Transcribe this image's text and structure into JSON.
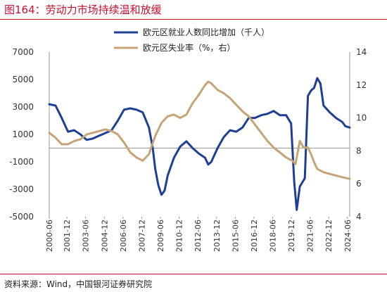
{
  "header": {
    "title": "图164：劳动力市场持续温和放缓"
  },
  "footer": {
    "source": "资料来源：Wind，中国银河证券研究院"
  },
  "colors": {
    "accent": "#c8102e",
    "employment_line": "#1f3f94",
    "unemployment_line": "#c4a478"
  },
  "chart_data": {
    "type": "line",
    "title": "图164：劳动力市场持续温和放缓",
    "x_tick_labels": [
      "2000-06",
      "2001-12",
      "2003-06",
      "2004-12",
      "2006-06",
      "2007-12",
      "2009-06",
      "2010-12",
      "2012-06",
      "2013-12",
      "2015-06",
      "2016-12",
      "2018-06",
      "2019-12",
      "2021-06",
      "2022-12",
      "2024-06"
    ],
    "left_axis": {
      "ylim": [
        -5000,
        7000
      ],
      "ticks": [
        7000,
        5000,
        3000,
        1000,
        -1000,
        -3000,
        -5000
      ]
    },
    "right_axis": {
      "ylim": [
        4,
        14
      ],
      "ticks": [
        14,
        12,
        10,
        8,
        6,
        4
      ]
    },
    "legend_position": "top-center",
    "grid": false,
    "series": [
      {
        "name": "欧元区就业人数同比增加（千人）",
        "axis": "left",
        "color": "#1f3f94",
        "points": [
          [
            2000.5,
            3200
          ],
          [
            2001.0,
            3100
          ],
          [
            2001.5,
            2200
          ],
          [
            2002.0,
            1200
          ],
          [
            2002.5,
            1300
          ],
          [
            2003.0,
            1000
          ],
          [
            2003.5,
            600
          ],
          [
            2004.0,
            700
          ],
          [
            2004.5,
            900
          ],
          [
            2005.0,
            1100
          ],
          [
            2005.5,
            1300
          ],
          [
            2006.0,
            2000
          ],
          [
            2006.5,
            2800
          ],
          [
            2007.0,
            2900
          ],
          [
            2007.5,
            2800
          ],
          [
            2008.0,
            2600
          ],
          [
            2008.5,
            1500
          ],
          [
            2008.8,
            0
          ],
          [
            2009.0,
            -1500
          ],
          [
            2009.25,
            -2700
          ],
          [
            2009.5,
            -3400
          ],
          [
            2009.75,
            -3100
          ],
          [
            2010.0,
            -2000
          ],
          [
            2010.5,
            -700
          ],
          [
            2011.0,
            100
          ],
          [
            2011.5,
            500
          ],
          [
            2012.0,
            0
          ],
          [
            2012.5,
            -400
          ],
          [
            2013.0,
            -700
          ],
          [
            2013.25,
            -1200
          ],
          [
            2013.5,
            -1000
          ],
          [
            2014.0,
            0
          ],
          [
            2014.5,
            800
          ],
          [
            2015.0,
            1300
          ],
          [
            2015.5,
            1200
          ],
          [
            2016.0,
            1500
          ],
          [
            2016.5,
            2200
          ],
          [
            2017.0,
            2200
          ],
          [
            2017.5,
            2400
          ],
          [
            2018.0,
            2500
          ],
          [
            2018.5,
            2700
          ],
          [
            2019.0,
            2400
          ],
          [
            2019.5,
            2400
          ],
          [
            2019.9,
            1800
          ],
          [
            2020.15,
            -2500
          ],
          [
            2020.35,
            -4500
          ],
          [
            2020.6,
            -2800
          ],
          [
            2021.0,
            -2200
          ],
          [
            2021.25,
            3800
          ],
          [
            2021.5,
            4200
          ],
          [
            2021.75,
            4400
          ],
          [
            2022.0,
            5100
          ],
          [
            2022.25,
            4700
          ],
          [
            2022.5,
            3100
          ],
          [
            2023.0,
            2600
          ],
          [
            2023.5,
            2200
          ],
          [
            2024.0,
            1900
          ],
          [
            2024.25,
            1600
          ],
          [
            2024.6,
            1500
          ]
        ]
      },
      {
        "name": "欧元区失业率（%，右）",
        "axis": "right",
        "color": "#c4a478",
        "points": [
          [
            2000.5,
            9.1
          ],
          [
            2001.0,
            8.8
          ],
          [
            2001.5,
            8.4
          ],
          [
            2002.0,
            8.4
          ],
          [
            2002.5,
            8.6
          ],
          [
            2003.0,
            8.7
          ],
          [
            2003.5,
            9.0
          ],
          [
            2004.0,
            9.1
          ],
          [
            2004.5,
            9.2
          ],
          [
            2005.0,
            9.3
          ],
          [
            2005.5,
            9.2
          ],
          [
            2006.0,
            9.0
          ],
          [
            2006.5,
            8.5
          ],
          [
            2007.0,
            7.9
          ],
          [
            2007.5,
            7.6
          ],
          [
            2008.0,
            7.4
          ],
          [
            2008.5,
            7.8
          ],
          [
            2009.0,
            8.9
          ],
          [
            2009.5,
            9.7
          ],
          [
            2010.0,
            10.1
          ],
          [
            2010.5,
            10.2
          ],
          [
            2011.0,
            10.0
          ],
          [
            2011.5,
            10.2
          ],
          [
            2012.0,
            10.9
          ],
          [
            2012.5,
            11.4
          ],
          [
            2013.0,
            12.0
          ],
          [
            2013.25,
            12.2
          ],
          [
            2013.5,
            12.1
          ],
          [
            2014.0,
            11.7
          ],
          [
            2014.5,
            11.5
          ],
          [
            2015.0,
            11.2
          ],
          [
            2015.5,
            10.8
          ],
          [
            2016.0,
            10.4
          ],
          [
            2016.5,
            10.1
          ],
          [
            2017.0,
            9.6
          ],
          [
            2017.5,
            9.1
          ],
          [
            2018.0,
            8.6
          ],
          [
            2018.5,
            8.2
          ],
          [
            2019.0,
            7.9
          ],
          [
            2019.5,
            7.6
          ],
          [
            2020.0,
            7.4
          ],
          [
            2020.25,
            7.2
          ],
          [
            2020.6,
            8.6
          ],
          [
            2020.9,
            8.2
          ],
          [
            2021.25,
            8.2
          ],
          [
            2021.5,
            7.8
          ],
          [
            2021.75,
            7.3
          ],
          [
            2022.0,
            6.9
          ],
          [
            2022.5,
            6.7
          ],
          [
            2023.0,
            6.6
          ],
          [
            2023.5,
            6.5
          ],
          [
            2024.0,
            6.4
          ],
          [
            2024.6,
            6.3
          ]
        ]
      }
    ]
  }
}
